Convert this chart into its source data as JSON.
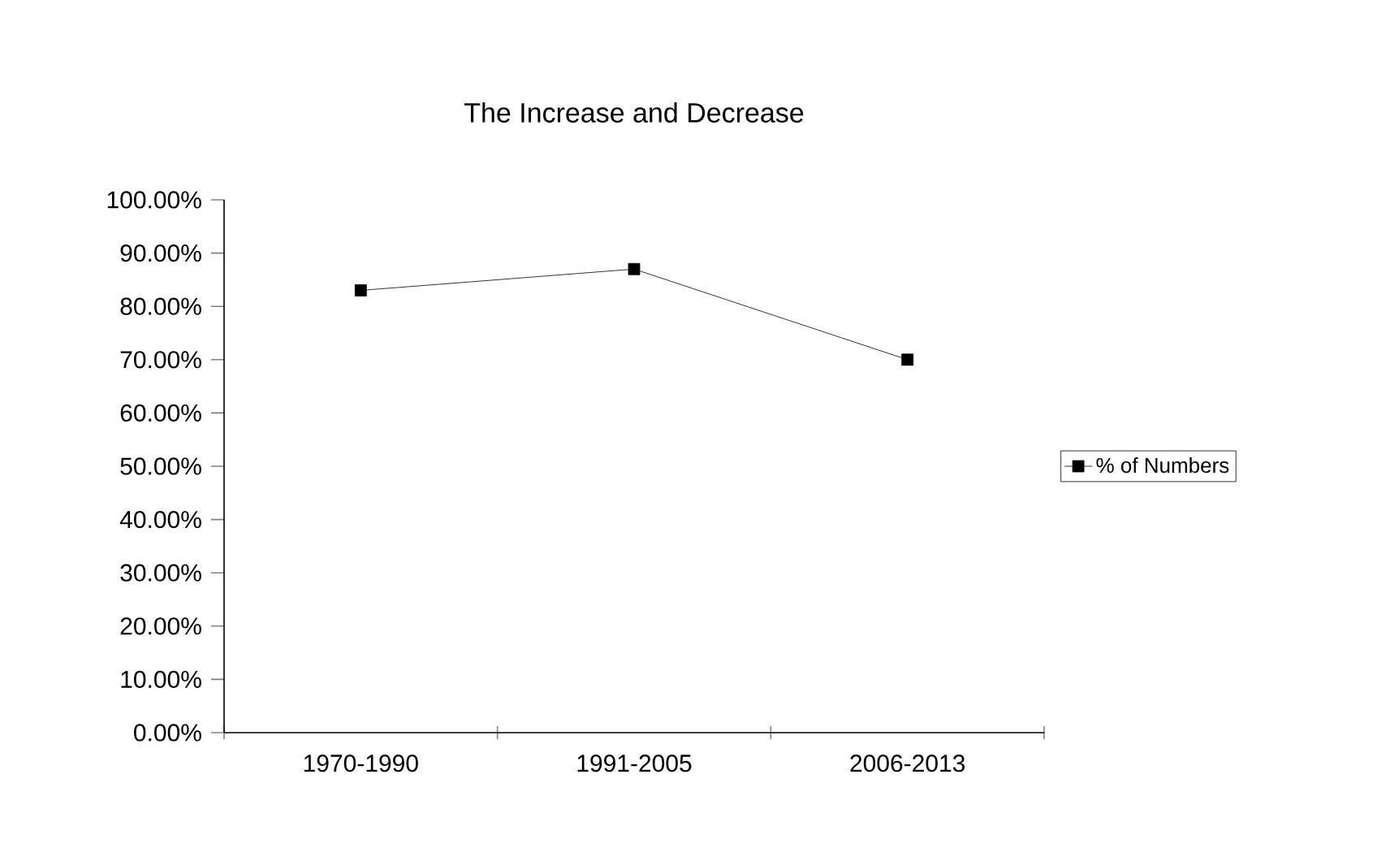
{
  "chart_data": {
    "type": "line",
    "title": "The Increase and Decrease",
    "categories": [
      "1970-1990",
      "1991-2005",
      "2006-2013"
    ],
    "series": [
      {
        "name": "% of Numbers",
        "color": "#000000",
        "values": [
          83,
          87,
          70
        ]
      }
    ],
    "ylim": [
      0,
      100
    ],
    "yticks": [
      {
        "value": 0,
        "label": "0.00%"
      },
      {
        "value": 10,
        "label": "10.00%"
      },
      {
        "value": 20,
        "label": "20.00%"
      },
      {
        "value": 30,
        "label": "30.00%"
      },
      {
        "value": 40,
        "label": "40.00%"
      },
      {
        "value": 50,
        "label": "50.00%"
      },
      {
        "value": 60,
        "label": "60.00%"
      },
      {
        "value": 70,
        "label": "70.00%"
      },
      {
        "value": 80,
        "label": "80.00%"
      },
      {
        "value": 90,
        "label": "90.00%"
      },
      {
        "value": 100,
        "label": "100.00%"
      }
    ],
    "legend": "right",
    "marker": "square",
    "line_style": "solid",
    "grid": false
  }
}
